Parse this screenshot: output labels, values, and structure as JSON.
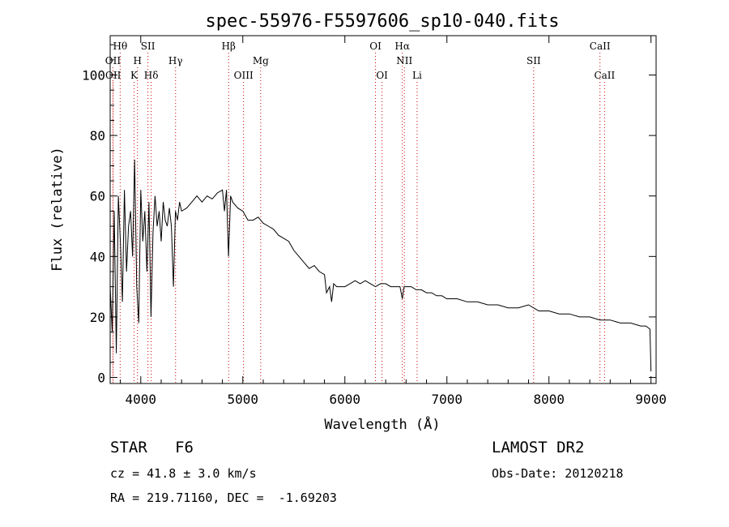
{
  "chart_data": {
    "type": "line",
    "title": "spec-55976-F5597606_sp10-040.fits",
    "xlabel": "Wavelength (Å)",
    "ylabel": "Flux (relative)",
    "xlim": [
      3700,
      9050
    ],
    "ylim": [
      -2,
      113
    ],
    "x_ticks": [
      4000,
      5000,
      6000,
      7000,
      8000,
      9000
    ],
    "y_ticks": [
      0,
      20,
      40,
      60,
      80,
      100
    ],
    "grid": false,
    "line_color": "#000000",
    "marker_color": "#cc0000",
    "series": [
      {
        "x": [
          3700,
          3720,
          3740,
          3760,
          3780,
          3800,
          3820,
          3840,
          3860,
          3880,
          3900,
          3920,
          3940,
          3960,
          3980,
          4000,
          4020,
          4040,
          4060,
          4080,
          4100,
          4120,
          4140,
          4160,
          4180,
          4200,
          4220,
          4240,
          4260,
          4280,
          4300,
          4320,
          4340,
          4360,
          4380,
          4400,
          4450,
          4500,
          4550,
          4600,
          4650,
          4700,
          4750,
          4800,
          4820,
          4840,
          4860,
          4880,
          4900,
          4950,
          5000,
          5050,
          5100,
          5150,
          5200,
          5250,
          5300,
          5350,
          5400,
          5450,
          5500,
          5550,
          5600,
          5650,
          5700,
          5750,
          5800,
          5820,
          5850,
          5870,
          5890,
          5920,
          5950,
          6000,
          6050,
          6100,
          6150,
          6200,
          6250,
          6300,
          6350,
          6400,
          6450,
          6500,
          6540,
          6563,
          6580,
          6600,
          6650,
          6700,
          6750,
          6800,
          6850,
          6900,
          6950,
          7000,
          7100,
          7200,
          7300,
          7400,
          7500,
          7600,
          7700,
          7800,
          7900,
          8000,
          8100,
          8200,
          8300,
          8400,
          8500,
          8600,
          8700,
          8800,
          8900,
          8950,
          8990,
          9000
        ],
        "y": [
          30,
          15,
          55,
          8,
          60,
          45,
          25,
          62,
          35,
          50,
          55,
          40,
          72,
          30,
          18,
          62,
          45,
          55,
          35,
          58,
          20,
          48,
          60,
          50,
          55,
          45,
          58,
          52,
          50,
          56,
          50,
          30,
          55,
          52,
          58,
          55,
          56,
          58,
          60,
          58,
          60,
          59,
          61,
          62,
          55,
          62,
          40,
          60,
          58,
          56,
          55,
          52,
          52,
          53,
          51,
          50,
          49,
          47,
          46,
          45,
          42,
          40,
          38,
          36,
          37,
          35,
          34,
          28,
          30,
          25,
          31,
          30,
          30,
          30,
          31,
          32,
          31,
          32,
          31,
          30,
          31,
          31,
          30,
          30,
          30,
          26,
          30,
          30,
          30,
          29,
          29,
          28,
          28,
          27,
          27,
          26,
          26,
          25,
          25,
          24,
          24,
          23,
          23,
          24,
          22,
          22,
          21,
          21,
          20,
          20,
          19,
          19,
          18,
          18,
          17,
          17,
          16,
          2
        ]
      }
    ],
    "line_markers": [
      {
        "label": "Hθ",
        "x": 3798,
        "row": 1
      },
      {
        "label": "OII",
        "x": 3727,
        "row": 2
      },
      {
        "label": "OII",
        "x": 3729,
        "row": 3
      },
      {
        "label": "SII",
        "x": 4070,
        "row": 1
      },
      {
        "label": "H",
        "x": 3968,
        "row": 2
      },
      {
        "label": "K",
        "x": 3934,
        "row": 3
      },
      {
        "label": "Hδ",
        "x": 4102,
        "row": 3
      },
      {
        "label": "Hγ",
        "x": 4341,
        "row": 2
      },
      {
        "label": "Hβ",
        "x": 4861,
        "row": 1
      },
      {
        "label": "OIII",
        "x": 5007,
        "row": 3
      },
      {
        "label": "Mg",
        "x": 5175,
        "row": 2
      },
      {
        "label": "OI",
        "x": 6300,
        "row": 1
      },
      {
        "label": "OI",
        "x": 6364,
        "row": 3
      },
      {
        "label": "Hα",
        "x": 6563,
        "row": 1
      },
      {
        "label": "NII",
        "x": 6583,
        "row": 2
      },
      {
        "label": "Li",
        "x": 6708,
        "row": 3
      },
      {
        "label": "SII",
        "x": 7850,
        "row": 2
      },
      {
        "label": "CaII",
        "x": 8500,
        "row": 1
      },
      {
        "label": "CaII",
        "x": 8545,
        "row": 3
      }
    ]
  },
  "info": {
    "class_line": "STAR   F6",
    "survey": "LAMOST DR2",
    "cz": "cz = 41.8 ± 3.0 km/s",
    "obs_date": "Obs-Date: 20120218",
    "coords": "RA = 219.71160, DEC =  -1.69203"
  }
}
